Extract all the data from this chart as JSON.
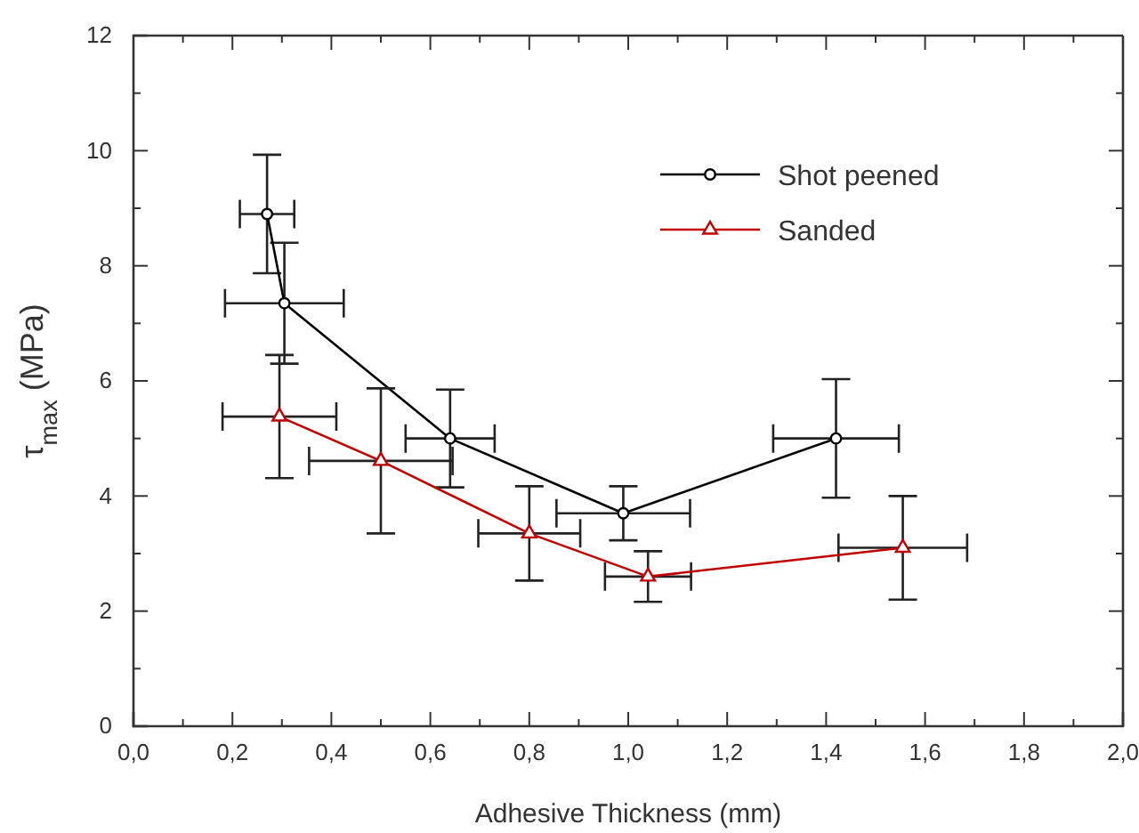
{
  "chart_data": {
    "type": "line",
    "xlabel": "Adhesive Thickness (mm)",
    "ylabel": "τ$_{max}$  (MPa)",
    "xlim": [
      0,
      2
    ],
    "ylim": [
      0,
      12
    ],
    "xticks": [
      {
        "value": 0,
        "label": "0,0"
      },
      {
        "value": 0.1,
        "label": null
      },
      {
        "value": 0.2,
        "label": "0,2"
      },
      {
        "value": 0.3,
        "label": null
      },
      {
        "value": 0.4,
        "label": "0,4"
      },
      {
        "value": 0.5,
        "label": null
      },
      {
        "value": 0.6,
        "label": "0,6"
      },
      {
        "value": 0.7,
        "label": null
      },
      {
        "value": 0.8,
        "label": "0,8"
      },
      {
        "value": 0.9,
        "label": null
      },
      {
        "value": 1.0,
        "label": "1,0"
      },
      {
        "value": 1.1,
        "label": null
      },
      {
        "value": 1.2,
        "label": "1,2"
      },
      {
        "value": 1.3,
        "label": null
      },
      {
        "value": 1.4,
        "label": "1,4"
      },
      {
        "value": 1.5,
        "label": null
      },
      {
        "value": 1.6,
        "label": "1,6"
      },
      {
        "value": 1.7,
        "label": null
      },
      {
        "value": 1.8,
        "label": "1,8"
      },
      {
        "value": 1.9,
        "label": null
      },
      {
        "value": 2.0,
        "label": "2,0"
      }
    ],
    "yticks": [
      0,
      {
        "value": 1,
        "label": null
      },
      2,
      {
        "value": 3,
        "label": null
      },
      4,
      {
        "value": 5,
        "label": null
      },
      6,
      {
        "value": 7,
        "label": null
      },
      8,
      {
        "value": 9,
        "label": null
      },
      10,
      {
        "value": 11,
        "label": null
      },
      12
    ],
    "grid": false,
    "legend": "top right",
    "line_style": "solid",
    "series": [
      {
        "name": "Shot peened",
        "color": "#000000",
        "marker": "circle",
        "x": [
          0.27,
          0.305,
          0.64,
          0.99,
          1.42
        ],
        "values": [
          8.9,
          7.35,
          5.0,
          3.7,
          5.0
        ],
        "errors": [
          1.03,
          1.05,
          0.85,
          0.47,
          1.03
        ],
        "xerrors": [
          0.055,
          0.12,
          0.09,
          0.135,
          0.127
        ]
      },
      {
        "name": "Sanded",
        "color": "#c00000",
        "marker": "triangle",
        "x": [
          0.295,
          0.5,
          0.8,
          1.04,
          1.555
        ],
        "values": [
          5.38,
          4.61,
          3.35,
          2.6,
          3.1
        ],
        "errors": [
          1.07,
          1.26,
          0.82,
          0.44,
          0.9
        ],
        "xerrors": [
          0.115,
          0.145,
          0.103,
          0.087,
          0.13
        ]
      }
    ]
  }
}
